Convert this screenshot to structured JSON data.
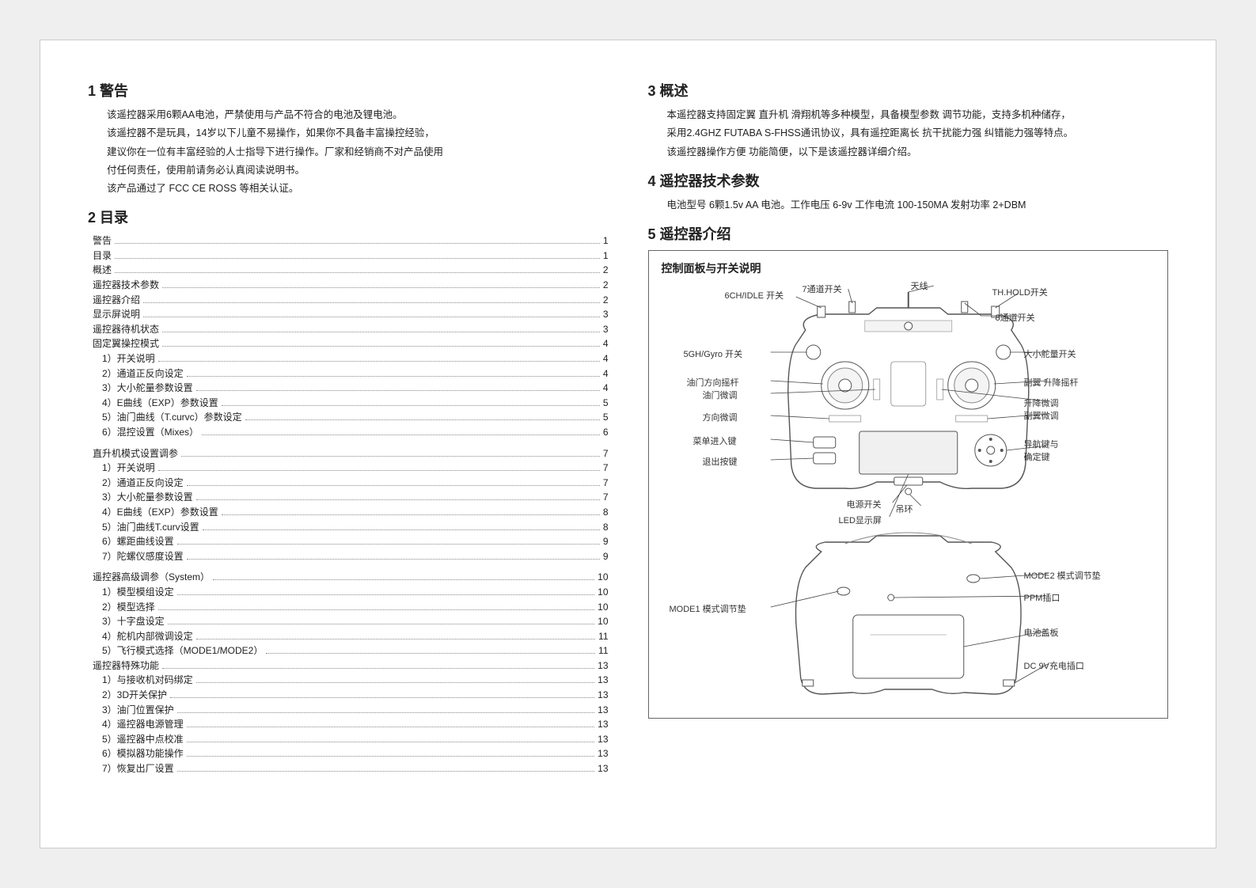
{
  "sections": {
    "s1": {
      "num": "1",
      "title": "警告"
    },
    "s2": {
      "num": "2",
      "title": "目录"
    },
    "s3": {
      "num": "3",
      "title": "概述"
    },
    "s4": {
      "num": "4",
      "title": "遥控器技术参数"
    },
    "s5": {
      "num": "5",
      "title": "遥控器介绍"
    }
  },
  "warning": {
    "p1": "该遥控器采用6颗AA电池，严禁使用与产品不符合的电池及锂电池。",
    "p2": "该遥控器不是玩具，14岁以下儿童不易操作，如果你不具备丰富操控经验，",
    "p3": "建议你在一位有丰富经验的人士指导下进行操作。厂家和经销商不对产品使用",
    "p4": "付任何责任，使用前请务必认真阅读说明书。",
    "p5": "该产品通过了 FCC CE ROSS 等相关认证。"
  },
  "overview": {
    "p1": "本遥控器支持固定翼 直升机 滑翔机等多种模型，具备模型参数 调节功能，支持多机种储存，",
    "p2": "采用2.4GHZ FUTABA  S-FHSS通讯协议，具有遥控距离长 抗干扰能力强 纠错能力强等特点。",
    "p3": "该遥控器操作方便 功能简便，以下是该遥控器详细介绍。"
  },
  "specs": {
    "line": "电池型号  6颗1.5v AA 电池。工作电压  6-9v  工作电流 100-150MA  发射功率 2+DBM"
  },
  "toc": [
    {
      "label": "警告",
      "page": "1",
      "sub": false
    },
    {
      "label": "目录",
      "page": "1",
      "sub": false
    },
    {
      "label": "概述",
      "page": "2",
      "sub": false
    },
    {
      "label": "遥控器技术参数",
      "page": "2",
      "sub": false
    },
    {
      "label": "遥控器介绍",
      "page": "2",
      "sub": false
    },
    {
      "label": "显示屏说明",
      "page": "3",
      "sub": false
    },
    {
      "label": "遥控器待机状态",
      "page": "3",
      "sub": false
    },
    {
      "label": "固定翼操控模式",
      "page": "4",
      "sub": false
    },
    {
      "label": "1）开关说明",
      "page": "4",
      "sub": true
    },
    {
      "label": "2）通道正反向设定",
      "page": "4",
      "sub": true
    },
    {
      "label": "3）大小舵量参数设置",
      "page": "4",
      "sub": true
    },
    {
      "label": "4）E曲线（EXP）参数设置",
      "page": "5",
      "sub": true
    },
    {
      "label": "5）油门曲线（T.curvc）参数设定",
      "page": "5",
      "sub": true
    },
    {
      "label": "6）混控设置（Mixes）",
      "page": "6",
      "sub": true
    },
    {
      "label": "直升机模式设置调参",
      "page": "7",
      "sub": false,
      "group": true
    },
    {
      "label": "1）开关说明",
      "page": "7",
      "sub": true
    },
    {
      "label": "2）通道正反向设定",
      "page": "7",
      "sub": true
    },
    {
      "label": "3）大小舵量参数设置",
      "page": "7",
      "sub": true
    },
    {
      "label": "4）E曲线（EXP）参数设置",
      "page": "8",
      "sub": true
    },
    {
      "label": "5）油门曲线T.curv设置",
      "page": "8",
      "sub": true
    },
    {
      "label": "6）螺距曲线设置",
      "page": "9",
      "sub": true
    },
    {
      "label": "7）陀螺仪感度设置",
      "page": "9",
      "sub": true
    },
    {
      "label": "遥控器高级调参（System）",
      "page": "10",
      "sub": false,
      "group": true
    },
    {
      "label": "1）模型模组设定",
      "page": "10",
      "sub": true
    },
    {
      "label": "2）模型选择",
      "page": "10",
      "sub": true
    },
    {
      "label": "3）十字盘设定",
      "page": "10",
      "sub": true
    },
    {
      "label": "4）舵机内部微调设定",
      "page": "11",
      "sub": true
    },
    {
      "label": "5）飞行模式选择（MODE1/MODE2）",
      "page": "11",
      "sub": true
    },
    {
      "label": "遥控器特殊功能",
      "page": "13",
      "sub": false
    },
    {
      "label": "1）与接收机对码绑定",
      "page": "13",
      "sub": true
    },
    {
      "label": "2）3D开关保护",
      "page": "13",
      "sub": true
    },
    {
      "label": "3）油门位置保护",
      "page": "13",
      "sub": true
    },
    {
      "label": "4）遥控器电源管理",
      "page": "13",
      "sub": true
    },
    {
      "label": "5）遥控器中点校准",
      "page": "13",
      "sub": true
    },
    {
      "label": "6）模拟器功能操作",
      "page": "13",
      "sub": true
    },
    {
      "label": "7）恢复出厂设置",
      "page": "13",
      "sub": true
    }
  ],
  "diagram": {
    "title": "控制面板与开关说明",
    "front_labels": {
      "l_6chidle": "6CH/IDLE 开关",
      "l_ch7": "7通道开关",
      "l_antenna": "天线",
      "l_thhold": "TH.HOLD开关",
      "l_ch8": "8通道开关",
      "l_5ghgyro": "5GH/Gyro 开关",
      "l_bigservo": "大小舵量开关",
      "l_throttle_dir": "油门方向摇杆",
      "l_aileron": "副翼 升降摇杆",
      "l_throttle_trim": "油门微调",
      "l_elev_trim": "升降微调",
      "l_dir_trim": "方向微调",
      "l_ail_trim": "副翼微调",
      "l_menu_in": "菜单进入键",
      "l_nav_conf": "导航键与\n确定键",
      "l_exit": "退出按键",
      "l_power": "电源开关",
      "l_lanyard": "吊环",
      "l_led": "LED显示屏"
    },
    "back_labels": {
      "l_mode1": "MODE1 模式调节垫",
      "l_mode2": "MODE2 模式调节垫",
      "l_ppm": "PPM插口",
      "l_batt_cover": "电池盖板",
      "l_dc9v": "DC 9V充电插口"
    },
    "colors": {
      "outline": "#555555",
      "fill": "#ffffff",
      "detail": "#888888",
      "screen": "#f0f0f0"
    }
  }
}
